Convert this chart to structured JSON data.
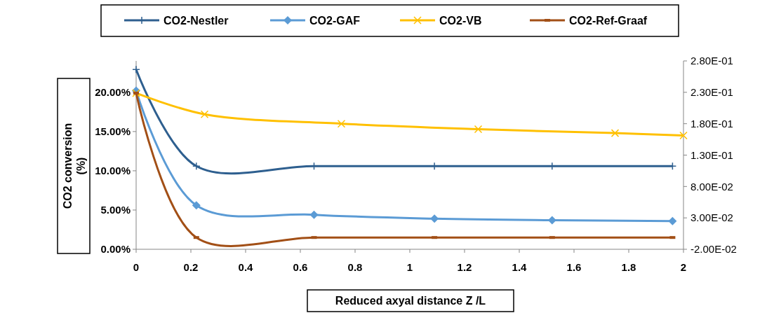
{
  "chart_data": {
    "type": "line",
    "xlabel": "Reduced axyal distance Z /L",
    "ylabel": "CO2 conversion (%)",
    "xlim": [
      0,
      2
    ],
    "xticks": [
      0,
      0.2,
      0.4,
      0.6,
      0.8,
      1,
      1.2,
      1.4,
      1.6,
      1.8,
      2
    ],
    "ylim": [
      0,
      24
    ],
    "yticks": [
      {
        "value": 0,
        "label": "0.00%"
      },
      {
        "value": 5,
        "label": "5.00%"
      },
      {
        "value": 10,
        "label": "10.00%"
      },
      {
        "value": 15,
        "label": "15.00%"
      },
      {
        "value": 20,
        "label": "20.00%"
      }
    ],
    "y2lim": [
      -0.02,
      0.28
    ],
    "y2ticks": [
      {
        "value": -0.02,
        "label": "-2.00E-02"
      },
      {
        "value": 0.03,
        "label": "3.00E-02"
      },
      {
        "value": 0.08,
        "label": "8.00E-02"
      },
      {
        "value": 0.13,
        "label": "1.30E-01"
      },
      {
        "value": 0.18,
        "label": "1.80E-01"
      },
      {
        "value": 0.23,
        "label": "2.30E-01"
      },
      {
        "value": 0.28,
        "label": "2.80E-01"
      }
    ],
    "grid": false,
    "legend": "top",
    "series": [
      {
        "name": "CO2-Nestler",
        "color": "#2e5f8f",
        "marker": "cross",
        "x": [
          0,
          0.22,
          0.65,
          1.09,
          1.52,
          1.96
        ],
        "values": [
          22.9,
          10.6,
          10.6,
          10.6,
          10.6,
          10.6
        ]
      },
      {
        "name": "CO2-GAF",
        "color": "#5b9bd5",
        "marker": "diamond",
        "x": [
          0,
          0.22,
          0.65,
          1.09,
          1.52,
          1.96
        ],
        "values": [
          20.2,
          5.6,
          4.4,
          3.9,
          3.7,
          3.6
        ]
      },
      {
        "name": "CO2-VB",
        "color": "#ffc000",
        "marker": "cross",
        "x": [
          0,
          0.25,
          0.75,
          1.25,
          1.75,
          2
        ],
        "values": [
          19.9,
          17.2,
          16.0,
          15.3,
          14.8,
          14.5
        ]
      },
      {
        "name": "CO2-Ref-Graaf",
        "color": "#a24f16",
        "marker": "square",
        "x": [
          0,
          0.22,
          0.65,
          1.09,
          1.52,
          1.96
        ],
        "values": [
          19.9,
          1.5,
          1.5,
          1.5,
          1.5,
          1.5
        ]
      }
    ]
  }
}
